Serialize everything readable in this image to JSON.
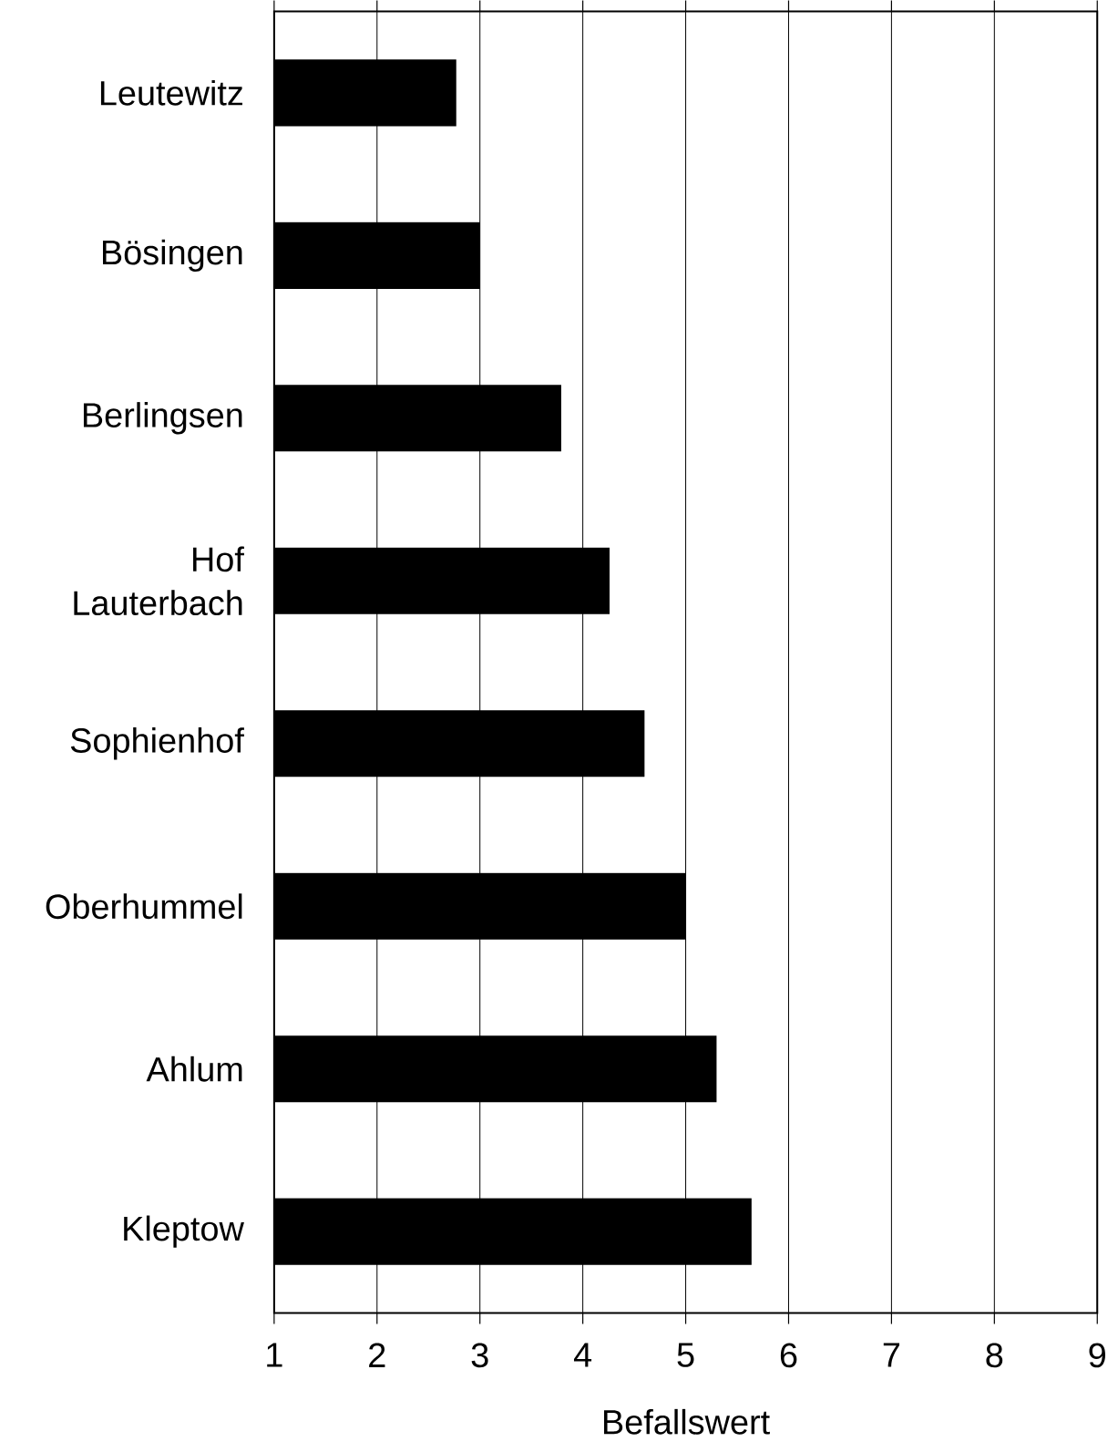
{
  "chart_data": {
    "type": "bar",
    "orientation": "horizontal",
    "xlabel": "Befallswert",
    "categories": [
      "Leutewitz",
      "Bösingen",
      "Berlingsen",
      "Hof Lauterbach",
      "Sophienhof",
      "Oberhummel",
      "Ahlum",
      "Kleptow"
    ],
    "values": [
      2.77,
      3.0,
      3.79,
      4.26,
      4.6,
      5.0,
      5.3,
      5.64
    ],
    "color": "#000000",
    "xlim": [
      1,
      9
    ],
    "xticks": [
      1,
      2,
      3,
      4,
      5,
      6,
      7,
      8,
      9
    ],
    "grid": "x"
  }
}
